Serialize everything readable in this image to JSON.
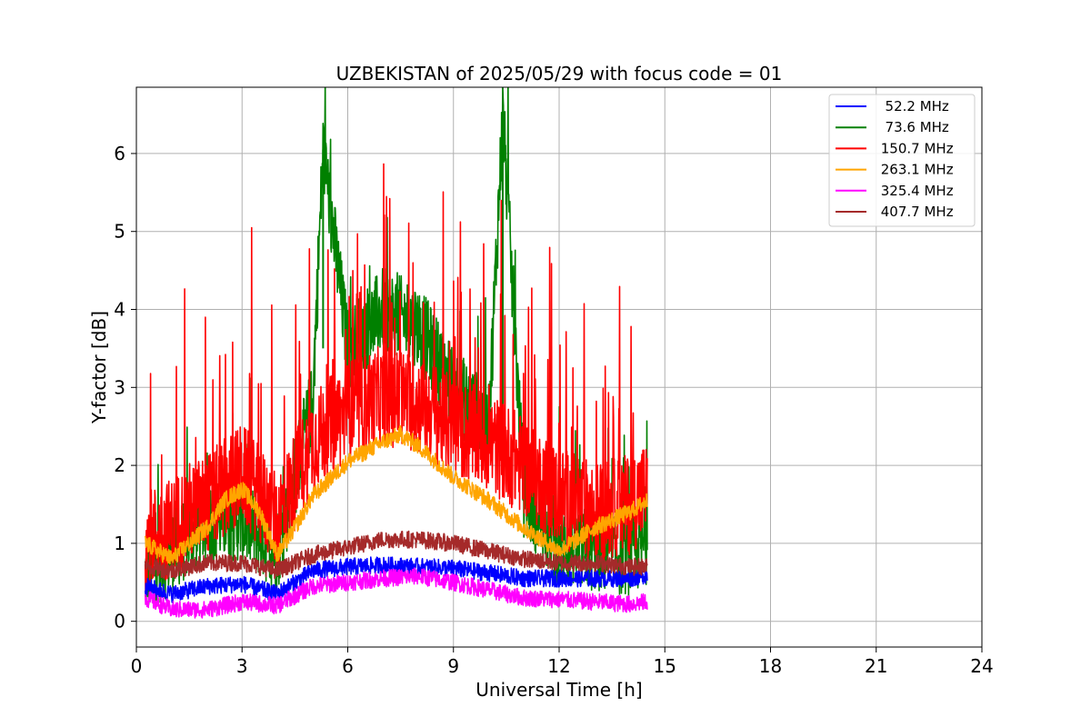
{
  "chart_data": {
    "type": "line",
    "title": "UZBEKISTAN of 2025/05/29 with focus code = 01",
    "xlabel": "Universal Time [h]",
    "ylabel": "Y-factor [dB]",
    "xlim": [
      0,
      24
    ],
    "ylim": [
      -0.33,
      6.85
    ],
    "x_ticks": [
      0,
      3,
      6,
      9,
      12,
      15,
      18,
      21,
      24
    ],
    "y_ticks": [
      0,
      1,
      2,
      3,
      4,
      5,
      6
    ],
    "grid": true,
    "legend_position": "top-right",
    "series": [
      {
        "name": "  52.2 MHz",
        "color": "#0000ff",
        "x": [
          0.25,
          1,
          2,
          3,
          4,
          5,
          6,
          7,
          8,
          9,
          10,
          11,
          12,
          13,
          14,
          14.5
        ],
        "y": [
          0.45,
          0.35,
          0.45,
          0.48,
          0.35,
          0.65,
          0.7,
          0.72,
          0.7,
          0.68,
          0.62,
          0.55,
          0.55,
          0.55,
          0.55,
          0.6
        ]
      },
      {
        "name": "  73.6 MHz",
        "color": "#008000",
        "x": [
          0.25,
          1,
          2,
          3,
          4,
          5,
          5.3,
          6,
          7,
          8,
          9,
          10,
          10.4,
          11,
          12,
          13,
          14,
          14.5
        ],
        "y": [
          0.6,
          0.9,
          1.3,
          1.3,
          0.9,
          2.8,
          6.05,
          3.5,
          4.0,
          3.8,
          3.0,
          2.5,
          6.5,
          1.6,
          1.0,
          0.9,
          0.85,
          1.0
        ],
        "spike_scale": 0.45
      },
      {
        "name": " 150.7 MHz",
        "color": "#ff0000",
        "x": [
          0.25,
          0.5,
          1,
          1.5,
          2,
          3,
          4,
          5,
          6,
          7,
          8,
          9,
          10,
          11,
          12,
          13,
          14,
          14.5
        ],
        "y": [
          1.0,
          1.1,
          1.2,
          1.4,
          1.5,
          1.9,
          1.3,
          2.3,
          2.7,
          2.9,
          2.8,
          2.5,
          2.3,
          2.0,
          1.6,
          1.4,
          1.5,
          1.7
        ],
        "spike_scale": 1.0
      },
      {
        "name": " 263.1 MHz",
        "color": "#ffa500",
        "x": [
          0.25,
          1,
          2,
          2.5,
          3,
          3.5,
          4,
          4.5,
          5,
          6,
          7,
          7.5,
          8,
          9,
          10,
          11,
          12,
          13,
          14,
          14.5
        ],
        "y": [
          1.0,
          0.8,
          1.2,
          1.55,
          1.7,
          1.4,
          0.85,
          1.2,
          1.6,
          2.05,
          2.3,
          2.4,
          2.25,
          1.85,
          1.55,
          1.2,
          0.9,
          1.2,
          1.4,
          1.55
        ]
      },
      {
        "name": " 325.4 MHz",
        "color": "#ff00ff",
        "x": [
          0.25,
          1,
          2,
          3,
          4,
          5,
          6,
          7,
          8,
          9,
          10,
          11,
          12,
          13,
          14,
          14.5
        ],
        "y": [
          0.3,
          0.15,
          0.15,
          0.25,
          0.2,
          0.45,
          0.5,
          0.55,
          0.58,
          0.5,
          0.4,
          0.3,
          0.28,
          0.25,
          0.22,
          0.25
        ]
      },
      {
        "name": " 407.7 MHz",
        "color": "#a52a2a",
        "x": [
          0.25,
          1,
          2,
          3,
          4,
          5,
          6,
          7,
          8,
          9,
          10,
          11,
          12,
          13,
          14,
          14.5
        ],
        "y": [
          0.7,
          0.65,
          0.75,
          0.75,
          0.65,
          0.85,
          0.95,
          1.05,
          1.05,
          1.0,
          0.9,
          0.8,
          0.75,
          0.75,
          0.7,
          0.7
        ]
      }
    ]
  }
}
